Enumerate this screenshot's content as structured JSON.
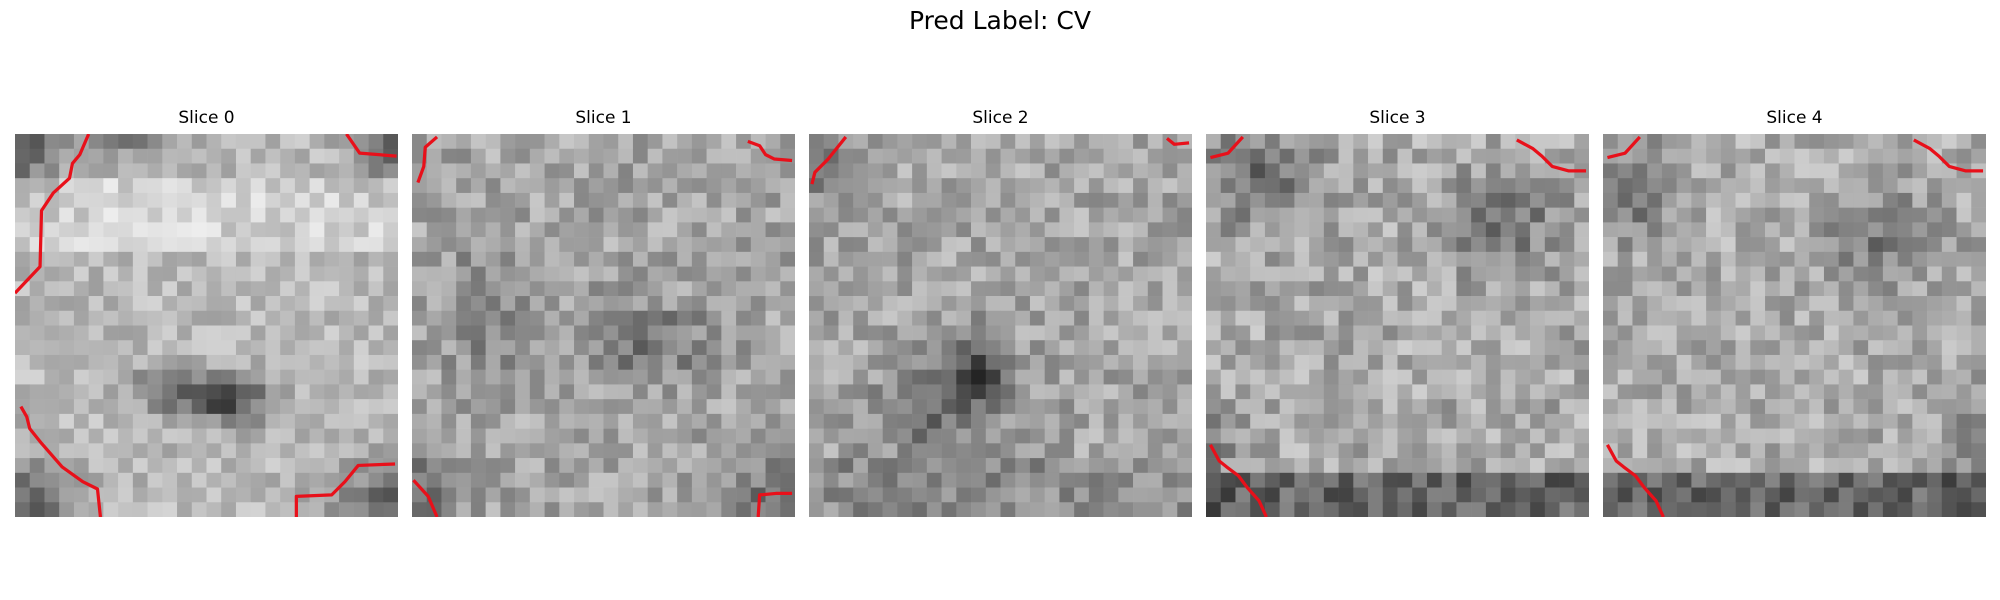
{
  "figure": {
    "title": "Pred Label: CV",
    "contour_color": "#e8101a",
    "colormap": "gray",
    "panels": [
      {
        "title": "Slice 0"
      },
      {
        "title": "Slice 1"
      },
      {
        "title": "Slice 2"
      },
      {
        "title": "Slice 3"
      },
      {
        "title": "Slice 4"
      }
    ]
  }
}
